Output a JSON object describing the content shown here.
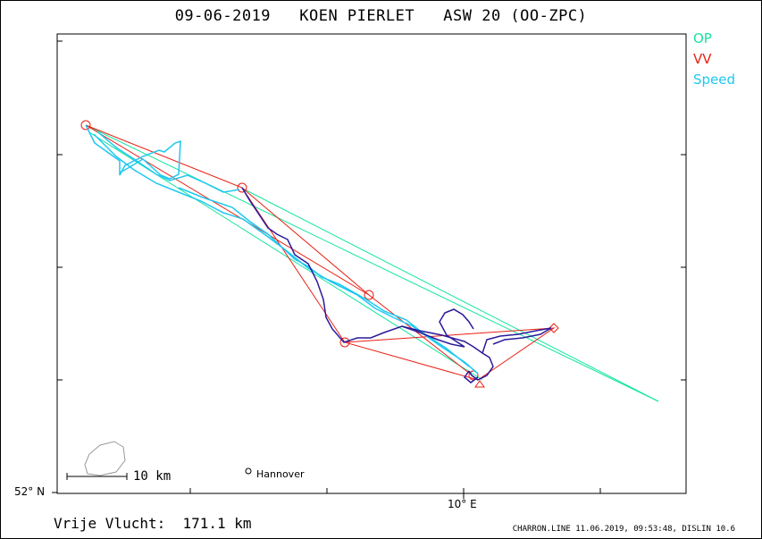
{
  "header": {
    "title": "09-06-2019   KOEN PIERLET   ASW 20 (OO-ZPC)"
  },
  "legend": [
    {
      "label": "OP",
      "color": "#14e6a0"
    },
    {
      "label": "VV",
      "color": "#e82014"
    },
    {
      "label": "Speed",
      "color": "#1ec8f0"
    }
  ],
  "axes": {
    "lat_label": "52° N",
    "lon_label": "10° E"
  },
  "map": {
    "city": "Hannover",
    "scale_label": "10 km"
  },
  "summary": {
    "distance": "Vrije Vlucht:  171.1 km"
  },
  "footer": {
    "text": "CHARRON.LINE 11.06.2019, 09:53:48, DISLIN 10.6"
  }
}
